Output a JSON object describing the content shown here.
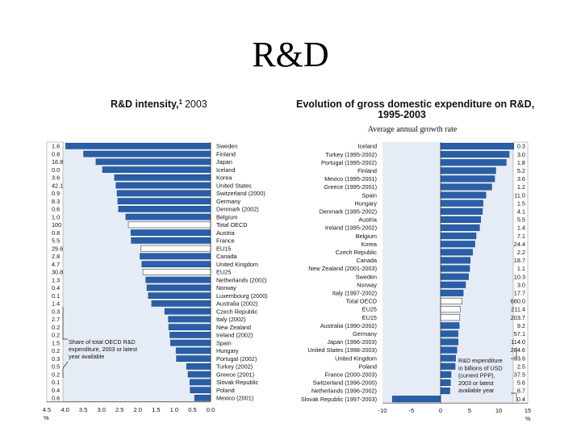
{
  "slide_title": "R&D",
  "chart_data": [
    {
      "type": "bar",
      "orientation": "horizontal-reversed",
      "title": "R&D intensity,",
      "title_superscript": "1",
      "title_year": "2003",
      "xunit": "%",
      "xlim": [
        0,
        4.5
      ],
      "xticks": [
        "4.5",
        "4.0",
        "3.5",
        "3.0",
        "2.5",
        "2.0",
        "1.5",
        "1.0",
        "0.5",
        "0.0"
      ],
      "categories": [
        "Sweden",
        "Finland",
        "Japan",
        "Iceland",
        "Korea",
        "United States",
        "Switzerland (2000)",
        "Germany",
        "Denmark (2002)",
        "Belgium",
        "Total OECD",
        "Austria",
        "France",
        "EU15",
        "Canada",
        "United Kingdom",
        "EU25",
        "Netherlands (2002)",
        "Norway",
        "Luxembourg (2000)",
        "Australia (2002)",
        "Czech Republic",
        "Italy (2002)",
        "New Zealand",
        "Ireland (2002)",
        "Spain",
        "Hungary",
        "Portugal (2002)",
        "Turkey (2002)",
        "Greece (2001)",
        "Slovak Republic",
        "Poland",
        "Mexico (2001)"
      ],
      "values": [
        3.98,
        3.49,
        3.15,
        2.97,
        2.64,
        2.6,
        2.57,
        2.55,
        2.53,
        2.33,
        2.26,
        2.19,
        2.18,
        1.92,
        1.94,
        1.89,
        1.86,
        1.78,
        1.75,
        1.71,
        1.62,
        1.26,
        1.16,
        1.15,
        1.12,
        1.1,
        0.95,
        0.94,
        0.66,
        0.62,
        0.57,
        0.56,
        0.44
      ],
      "share_values": [
        "1.6",
        "0.8",
        "16.8",
        "0.0",
        "3.6",
        "42.1",
        "0.9",
        "8.3",
        "0.6",
        "1.0",
        "100",
        "0.8",
        "5.5",
        "29.6",
        "2.8",
        "4.7",
        "30.8",
        "1.3",
        "0.4",
        "0.1",
        "1.4",
        "0.3",
        "2.7",
        "0.2",
        "0.2",
        "1.5",
        "0.2",
        "0.3",
        "0.5",
        "0.2",
        "0.1",
        "0.4",
        "0.6"
      ],
      "highlight_categories": [
        "Total OECD",
        "EU15",
        "EU25"
      ],
      "annotation": [
        "Share of total OECD R&D",
        "expenditure, 2003 or latest",
        "year available"
      ]
    },
    {
      "type": "bar",
      "orientation": "horizontal",
      "title": "Evolution of gross domestic expenditure on R&D,",
      "title_line2": "1995-2003",
      "subtitle": "Average annual growth rate",
      "xunit": "%",
      "xlim": [
        -10,
        15
      ],
      "xticks": [
        "-10",
        "-5",
        "0",
        "5",
        "10",
        "15"
      ],
      "categories": [
        "Iceland",
        "Turkey (1995-2002)",
        "Portugal (1995-2002)",
        "Finland",
        "Mexico (1995-2001)",
        "Greece (1995-2001)",
        "Spain",
        "Hungary",
        "Denmark (1995-2002)",
        "Austria",
        "Ireland (1995-2002)",
        "Belgium",
        "Korea",
        "Czech Republic",
        "Canada",
        "New Zealand (2001-2003)",
        "Sweden",
        "Norway",
        "Italy (1997-2002)",
        "Total OECD",
        "EU25",
        "EU15",
        "Australia (1990-2002)",
        "Germany",
        "Japan (1996-2003)",
        "United States (1998-2003)",
        "United Kingdom",
        "Poland",
        "France (2000-2003)",
        "Switzerland (1996-2000)",
        "Netherlands (1996-2002)",
        "Slovak Republic (1997-2003)"
      ],
      "values": [
        12.6,
        11.8,
        11.3,
        9.5,
        9.3,
        8.8,
        7.8,
        7.3,
        7.2,
        6.9,
        6.7,
        6.1,
        5.9,
        5.5,
        5.1,
        5.0,
        4.8,
        4.3,
        3.9,
        3.7,
        3.4,
        3.3,
        3.2,
        3.0,
        3.0,
        2.8,
        2.7,
        2.5,
        1.8,
        1.7,
        1.6,
        -8.3
      ],
      "gerd_values": [
        "0.3",
        "3.0",
        "1.8",
        "5.2",
        "3.6",
        "1.2",
        "11.0",
        "1.5",
        "4.1",
        "5.5",
        "1.4",
        "7.1",
        "24.4",
        "2.2",
        "18.7",
        "1.1",
        "10.3",
        "3.0",
        "17.7",
        "680.0",
        "211.4",
        "203.7",
        "9.2",
        "57.1",
        "114.0",
        "284.6",
        "33.6",
        "2.5",
        "37.5",
        "5.6",
        "8.7",
        "0.4"
      ],
      "highlight_categories": [
        "Total OECD",
        "EU25",
        "EU15"
      ],
      "annotation": [
        "R&D expenditure",
        "in billions of USD",
        "(current PPP),",
        "2003 or latest",
        "available year"
      ]
    }
  ],
  "colors": {
    "bar_fill": "#2a5fa8",
    "bar_edge": "#1e4c8a",
    "highlight_fill": "#ffffff",
    "panel_bg": "#e6ecf6",
    "label_bg": "#ffffff",
    "axis": "#333333"
  }
}
